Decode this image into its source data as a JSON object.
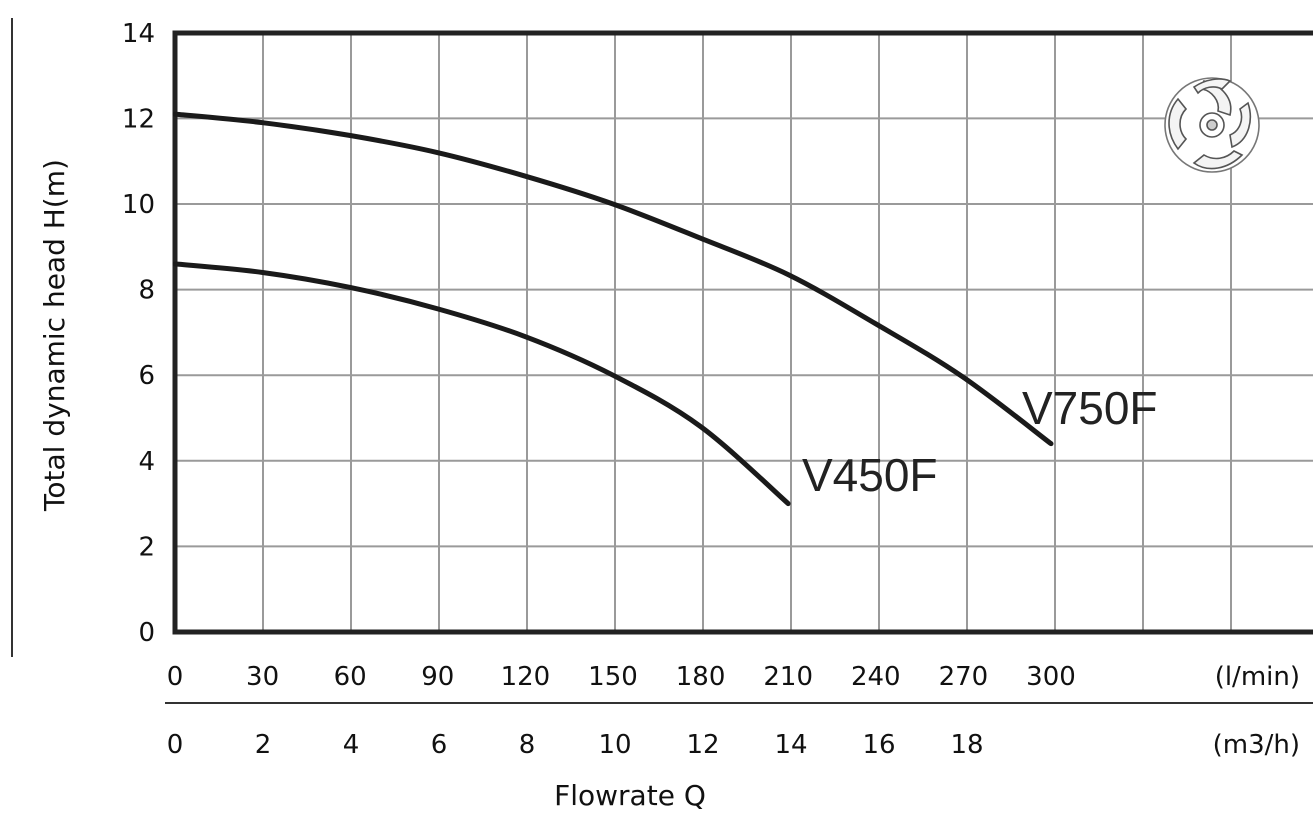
{
  "chart_data": {
    "type": "line",
    "title": "",
    "ylabel": "Total dynamic head H(m)",
    "xlabel": "Flowrate Q",
    "ylim": [
      0,
      14
    ],
    "y_ticks": [
      0,
      2,
      4,
      6,
      8,
      10,
      12,
      14
    ],
    "x_ticks_lmin": [
      "0",
      "30",
      "60",
      "90",
      "120",
      "150",
      "180",
      "210",
      "240",
      "270",
      "300"
    ],
    "x_unit_lmin": "(l/min)",
    "x_ticks_m3h": [
      "0",
      "2",
      "4",
      "6",
      "8",
      "10",
      "12",
      "14",
      "16",
      "18"
    ],
    "x_unit_m3h": "(m3/h)",
    "grid": true,
    "series": [
      {
        "name": "V750F",
        "x_lmin": [
          0,
          30,
          60,
          90,
          120,
          150,
          180,
          210,
          240,
          270,
          300
        ],
        "y": [
          12.1,
          11.9,
          11.6,
          11.2,
          10.65,
          10.0,
          9.2,
          8.35,
          7.2,
          5.95,
          4.4
        ]
      },
      {
        "name": "V450F",
        "x_lmin": [
          0,
          30,
          60,
          90,
          120,
          150,
          180,
          210
        ],
        "y": [
          8.6,
          8.4,
          8.05,
          7.55,
          6.9,
          6.0,
          4.8,
          3.0
        ]
      }
    ],
    "colors": {
      "line": "#1a1a1a",
      "grid": "#9a9a9a",
      "frame": "#222222"
    },
    "icon": "impeller-icon"
  }
}
